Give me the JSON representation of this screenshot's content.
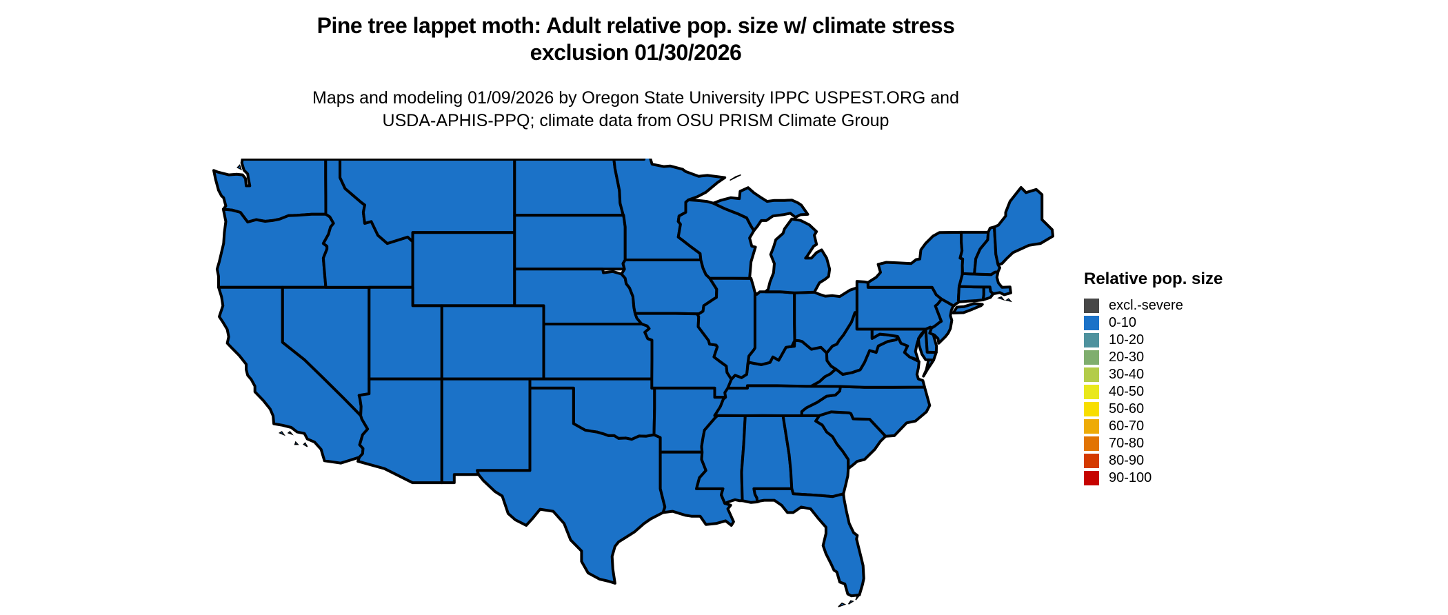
{
  "title": {
    "line1": "Pine tree lappet moth: Adult relative pop. size w/ climate stress",
    "line2": "exclusion 01/30/2026"
  },
  "subtitle": {
    "line1": "Maps and modeling 01/09/2026 by Oregon State University IPPC USPEST.ORG and",
    "line2": "USDA-APHIS-PPQ; climate data from OSU PRISM Climate Group"
  },
  "legend": {
    "title": "Relative pop. size",
    "classes": [
      {
        "label": "excl.-severe",
        "color": "#474747"
      },
      {
        "label": "0-10",
        "color": "#1b72c8"
      },
      {
        "label": "10-20",
        "color": "#4e929e"
      },
      {
        "label": "20-30",
        "color": "#7fae6e"
      },
      {
        "label": "30-40",
        "color": "#b3cc49"
      },
      {
        "label": "40-50",
        "color": "#e9e81c"
      },
      {
        "label": "50-60",
        "color": "#f8de00"
      },
      {
        "label": "60-70",
        "color": "#eeab06"
      },
      {
        "label": "70-80",
        "color": "#e27403"
      },
      {
        "label": "80-90",
        "color": "#d43a00"
      },
      {
        "label": "90-100",
        "color": "#c60300"
      }
    ]
  },
  "map": {
    "region": "Contiguous United States",
    "displayed_class_all_states": "0-10",
    "land_fill": "#1b72c8",
    "border_color": "#000000",
    "water_background": "#ffffff"
  }
}
